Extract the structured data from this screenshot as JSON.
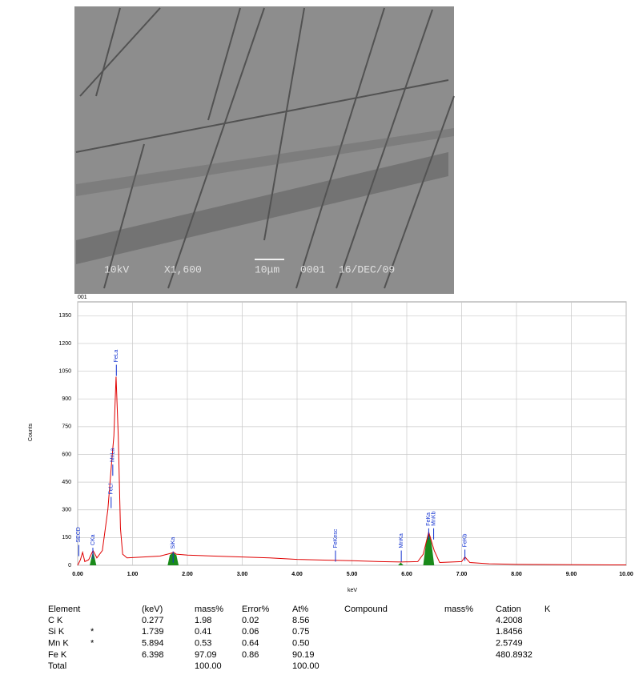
{
  "micrograph": {
    "caption": [
      "10kV",
      "X1,600",
      "10μm",
      "0001",
      "16/DEC/09"
    ]
  },
  "chart_data": {
    "type": "spectrum",
    "title": "001",
    "xlabel": "keV",
    "ylabel": "Counts",
    "xlim": [
      0,
      10
    ],
    "ylim": [
      0,
      1425
    ],
    "xticks": [
      {
        "value": 0,
        "label": "0.00"
      },
      {
        "value": 1,
        "label": "1.00"
      },
      {
        "value": 2,
        "label": "2.00"
      },
      {
        "value": 3,
        "label": "3.00"
      },
      {
        "value": 4,
        "label": "4.00"
      },
      {
        "value": 5,
        "label": "5.00"
      },
      {
        "value": 6,
        "label": "6.00"
      },
      {
        "value": 7,
        "label": "7.00"
      },
      {
        "value": 8,
        "label": "8.00"
      },
      {
        "value": 9,
        "label": "9.00"
      },
      {
        "value": 10,
        "label": "10.00"
      }
    ],
    "yticks": [
      0,
      150,
      300,
      450,
      600,
      750,
      900,
      1050,
      1200,
      1350
    ],
    "grid": true,
    "spectrum": {
      "color": "#e00000",
      "x": [
        0,
        0.05,
        0.09,
        0.13,
        0.2,
        0.28,
        0.35,
        0.45,
        0.55,
        0.62,
        0.66,
        0.7,
        0.74,
        0.78,
        0.82,
        0.9,
        1.2,
        1.5,
        1.7,
        1.75,
        1.8,
        2,
        2.5,
        3,
        3.5,
        4,
        4.5,
        5,
        5.5,
        5.9,
        6.2,
        6.3,
        6.4,
        6.5,
        6.6,
        7,
        7.06,
        7.15,
        7.5,
        8,
        9,
        10
      ],
      "values": [
        0,
        30,
        70,
        20,
        30,
        80,
        40,
        80,
        300,
        560,
        700,
        1020,
        700,
        200,
        60,
        40,
        45,
        50,
        65,
        70,
        60,
        55,
        50,
        45,
        40,
        32,
        28,
        25,
        20,
        18,
        20,
        60,
        180,
        80,
        15,
        20,
        45,
        15,
        8,
        5,
        3,
        2
      ]
    },
    "peak_areas": {
      "color": "#1a8a1a",
      "areas": [
        {
          "x": [
            0.22,
            0.25,
            0.28,
            0.31,
            0.34
          ],
          "values": [
            0,
            40,
            75,
            40,
            0
          ]
        },
        {
          "x": [
            1.64,
            1.68,
            1.74,
            1.8,
            1.84
          ],
          "values": [
            0,
            55,
            70,
            55,
            0
          ]
        },
        {
          "x": [
            5.84,
            5.89,
            5.94
          ],
          "values": [
            0,
            15,
            0
          ]
        },
        {
          "x": [
            6.3,
            6.35,
            6.4,
            6.45,
            6.5
          ],
          "values": [
            0,
            120,
            180,
            120,
            0
          ]
        }
      ]
    },
    "peaks": {
      "color": "#1030d0",
      "items": [
        {
          "label": "SECD",
          "x": 0.02,
          "y": 110
        },
        {
          "label": "CKa",
          "x": 0.277,
          "y": 95
        },
        {
          "label": "FeLl",
          "x": 0.61,
          "y": 370
        },
        {
          "label": "MnLa",
          "x": 0.64,
          "y": 545
        },
        {
          "label": "FeLa",
          "x": 0.705,
          "y": 1085
        },
        {
          "label": "SiKa",
          "x": 1.74,
          "y": 75
        },
        {
          "label": "FeKesc",
          "x": 4.7,
          "y": 80
        },
        {
          "label": "MnKa",
          "x": 5.9,
          "y": 80
        },
        {
          "label": "FeKa",
          "x": 6.4,
          "y": 200
        },
        {
          "label": "MnKb",
          "x": 6.49,
          "y": 200
        },
        {
          "label": "FeKb",
          "x": 7.06,
          "y": 85
        }
      ]
    }
  },
  "table": {
    "header": {
      "element": "Element",
      "kev": "(keV)",
      "mass": "mass%",
      "error": "Error%",
      "at": "At%",
      "compound": "Compound",
      "cmass": "mass%",
      "cation": "Cation",
      "k": "K"
    },
    "rows": [
      {
        "element": "C K",
        "kev": "0.277",
        "mass": "1.98",
        "error": "0.02",
        "at": "8.56",
        "cation": "4.2008"
      },
      {
        "element": "Si K",
        "flag": "*",
        "kev": "1.739",
        "mass": "0.41",
        "error": "0.06",
        "at": "0.75",
        "cation": "1.8456"
      },
      {
        "element": "Mn K",
        "flag": "*",
        "kev": "5.894",
        "mass": "0.53",
        "error": "0.64",
        "at": "0.50",
        "cation": "2.5749"
      },
      {
        "element": "Fe K",
        "kev": "6.398",
        "mass": "97.09",
        "error": "0.86",
        "at": "90.19",
        "cation": "480.8932"
      },
      {
        "element": "Total",
        "mass": "100.00",
        "at": "100.00"
      }
    ]
  }
}
